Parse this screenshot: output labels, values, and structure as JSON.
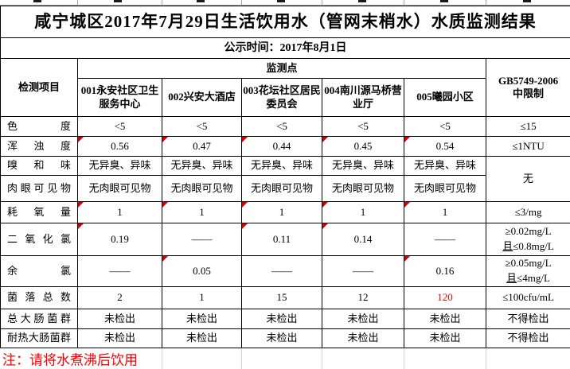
{
  "title": "咸宁城区2017年7月29日生活饮用水（管网末梢水）水质监测结果",
  "publish_time": "公示时间：2017年8月1日",
  "note": "注：请将水煮沸后饮用",
  "colors": {
    "alert_red": "#ff0000",
    "comment_indicator_red": "#d40000",
    "border_black": "#000000",
    "faint_gridline_gray": "#d4d4d4"
  },
  "table": {
    "corner_header": "检测项目",
    "sites_header": "监测点",
    "limit_header_line1": "GB5749-2006",
    "limit_header_line2": "中限制",
    "sites": [
      "001永安社区卫生服务中心",
      "002兴安大酒店",
      "003花坛社区居民委员会",
      "004南川源马桥营业厅",
      "005曦园小区"
    ],
    "rows": [
      {
        "label": "色度",
        "values": [
          "<5",
          "<5",
          "<5",
          "<5",
          "<5"
        ],
        "limit": "≤15",
        "marks": [
          0,
          0,
          0,
          0,
          0
        ]
      },
      {
        "label": "浑浊度",
        "values": [
          "0.56",
          "0.47",
          "0.44",
          "0.45",
          "0.54"
        ],
        "limit": "≤1NTU",
        "marks": [
          1,
          1,
          1,
          1,
          1
        ]
      },
      {
        "label": "嗅和味",
        "values": [
          "无异臭、异味",
          "无异臭、异味",
          "无异臭、异味",
          "无异臭、异味",
          "无异臭、异味"
        ],
        "limit": "无",
        "limit_rowspan": 2,
        "marks": [
          0,
          0,
          0,
          0,
          0
        ]
      },
      {
        "label": "肉眼可见物",
        "values": [
          "无肉眼可见物",
          "无肉眼可见物",
          "无肉眼可见物",
          "无肉眼可见物",
          "无肉眼可见物"
        ],
        "limit": null,
        "marks": [
          0,
          0,
          0,
          0,
          0
        ]
      },
      {
        "label": "耗氧量",
        "values": [
          "1",
          "1",
          "1",
          "1",
          "1"
        ],
        "limit": "≤3/mg",
        "marks": [
          1,
          1,
          1,
          1,
          1
        ]
      },
      {
        "label": "二氧化氯",
        "values": [
          "0.19",
          "——",
          "0.11",
          "0.14",
          "——"
        ],
        "limit_lines": [
          "≥0.02mg/L",
          "且≤0.8mg/L"
        ],
        "marks": [
          1,
          0,
          1,
          1,
          0
        ]
      },
      {
        "label": "余氯",
        "values": [
          "——",
          "0.05",
          "——",
          "——",
          "0.16"
        ],
        "limit_lines": [
          "≥0.05mg/L",
          "且≤4mg/L"
        ],
        "marks": [
          0,
          1,
          0,
          0,
          1
        ]
      },
      {
        "label": "菌落总数",
        "values": [
          "2",
          "1",
          "15",
          "12",
          "120"
        ],
        "limit": "≤100cfu/mL",
        "marks": [
          0,
          0,
          0,
          0,
          0
        ],
        "alert_indices": [
          4
        ]
      },
      {
        "label": "总大肠菌群",
        "values": [
          "未检出",
          "未检出",
          "未检出",
          "未检出",
          "未检出"
        ],
        "limit": "不得检出",
        "marks": [
          0,
          0,
          0,
          0,
          0
        ]
      },
      {
        "label": "耐热大肠菌群",
        "values": [
          "未检出",
          "未检出",
          "未检出",
          "未检出",
          "未检出"
        ],
        "limit": "不得检出",
        "marks": [
          0,
          0,
          0,
          0,
          0
        ]
      }
    ]
  }
}
